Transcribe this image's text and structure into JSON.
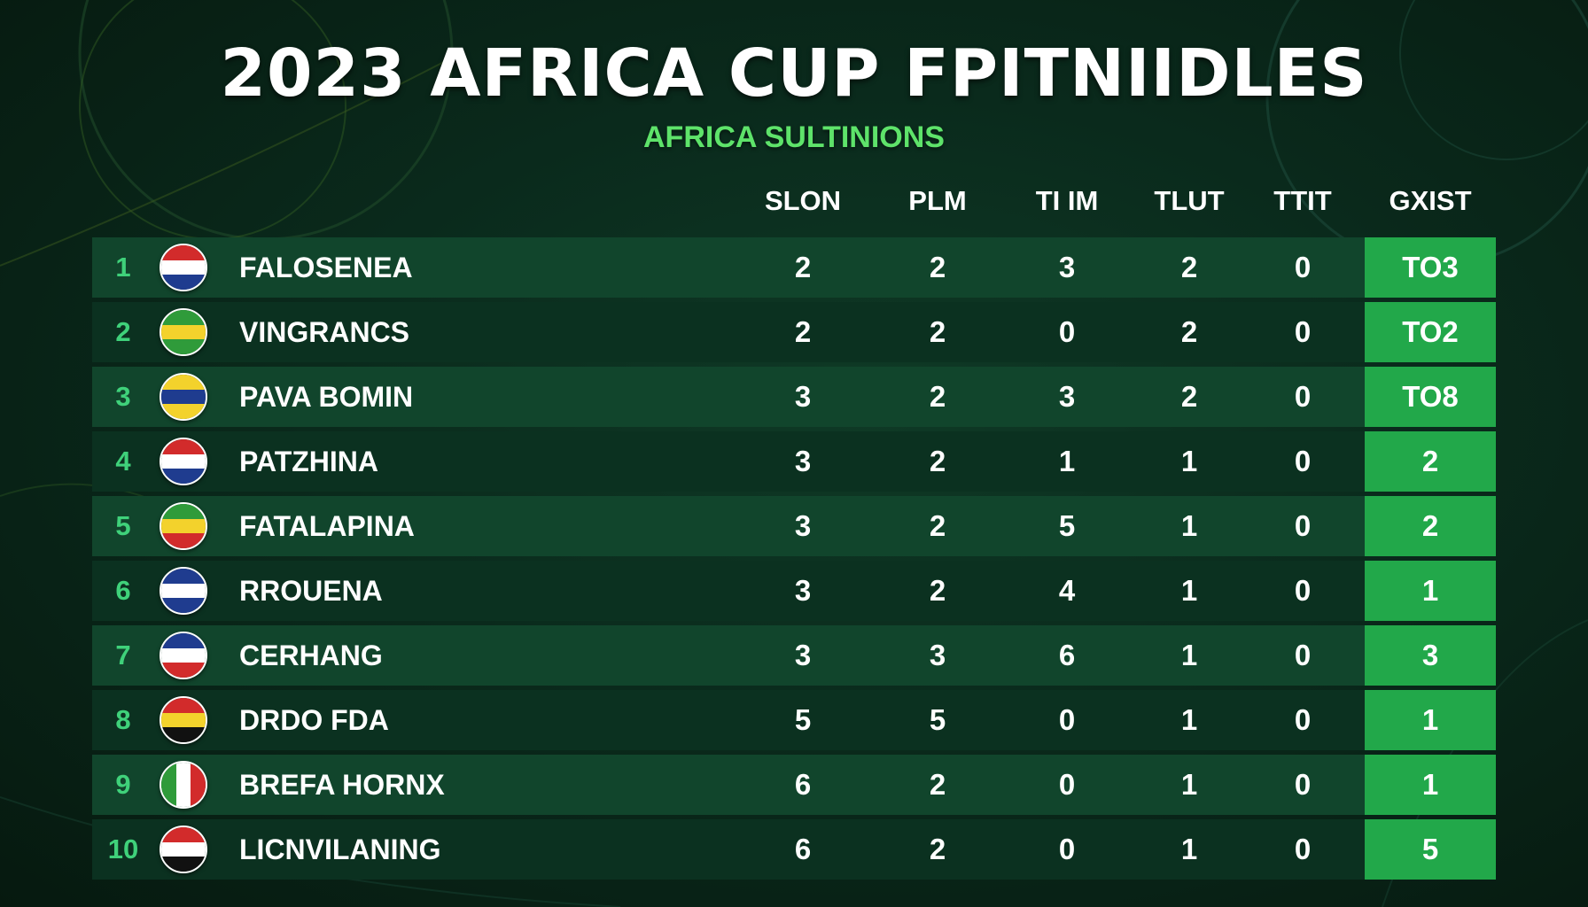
{
  "title": "2023 AFRICA CUP FPITNIIDLES",
  "subtitle": "AFRICA SULTINIONS",
  "columns": [
    "SLON",
    "PLM",
    "TI IM",
    "TLUT",
    "TTIT",
    "GXIST"
  ],
  "colors": {
    "background": "#0a2a1c",
    "row_light": "#11452c",
    "row_dark": "#0b3120",
    "rank_text": "#3fd17a",
    "subtitle": "#5ee36a",
    "points_cell": "#22a84a"
  },
  "rows": [
    {
      "rank": "1",
      "team": "FALOSENEA",
      "flag": {
        "style": "horizontal",
        "colors": [
          "#d22b2b",
          "#ffffff",
          "#1f3c8f"
        ]
      },
      "stats": [
        "2",
        "2",
        "3",
        "2",
        "0"
      ],
      "points": "TO3"
    },
    {
      "rank": "2",
      "team": "VINGRANCS",
      "flag": {
        "style": "horizontal",
        "colors": [
          "#2f9b3a",
          "#f3d22c",
          "#2f9b3a"
        ]
      },
      "stats": [
        "2",
        "2",
        "0",
        "2",
        "0"
      ],
      "points": "TO2"
    },
    {
      "rank": "3",
      "team": "PAVA BOMIN",
      "flag": {
        "style": "horizontal",
        "colors": [
          "#f3d22c",
          "#1f3c8f",
          "#f3d22c"
        ]
      },
      "stats": [
        "3",
        "2",
        "3",
        "2",
        "0"
      ],
      "points": "TO8"
    },
    {
      "rank": "4",
      "team": "PATZHINA",
      "flag": {
        "style": "horizontal",
        "colors": [
          "#d22b2b",
          "#ffffff",
          "#1f3c8f"
        ]
      },
      "stats": [
        "3",
        "2",
        "1",
        "1",
        "0"
      ],
      "points": "2"
    },
    {
      "rank": "5",
      "team": "FATALAPINA",
      "flag": {
        "style": "horizontal",
        "colors": [
          "#2f9b3a",
          "#f3d22c",
          "#d22b2b"
        ]
      },
      "stats": [
        "3",
        "2",
        "5",
        "1",
        "0"
      ],
      "points": "2"
    },
    {
      "rank": "6",
      "team": "RROUENA",
      "flag": {
        "style": "horizontal",
        "colors": [
          "#1f3c8f",
          "#ffffff",
          "#1f3c8f"
        ]
      },
      "stats": [
        "3",
        "2",
        "4",
        "1",
        "0"
      ],
      "points": "1"
    },
    {
      "rank": "7",
      "team": "CERHANG",
      "flag": {
        "style": "horizontal",
        "colors": [
          "#1f3c8f",
          "#ffffff",
          "#d22b2b"
        ]
      },
      "stats": [
        "3",
        "3",
        "6",
        "1",
        "0"
      ],
      "points": "3"
    },
    {
      "rank": "8",
      "team": "DRDO FDA",
      "flag": {
        "style": "horizontal",
        "colors": [
          "#d22b2b",
          "#f3d22c",
          "#111111"
        ]
      },
      "stats": [
        "5",
        "5",
        "0",
        "1",
        "0"
      ],
      "points": "1"
    },
    {
      "rank": "9",
      "team": "BREFA HORNX",
      "flag": {
        "style": "vertical",
        "colors": [
          "#2f9b3a",
          "#ffffff",
          "#d22b2b"
        ]
      },
      "stats": [
        "6",
        "2",
        "0",
        "1",
        "0"
      ],
      "points": "1"
    },
    {
      "rank": "10",
      "team": "LICNVILANING",
      "flag": {
        "style": "horizontal",
        "colors": [
          "#d22b2b",
          "#ffffff",
          "#111111"
        ]
      },
      "stats": [
        "6",
        "2",
        "0",
        "1",
        "0"
      ],
      "points": "5"
    }
  ]
}
